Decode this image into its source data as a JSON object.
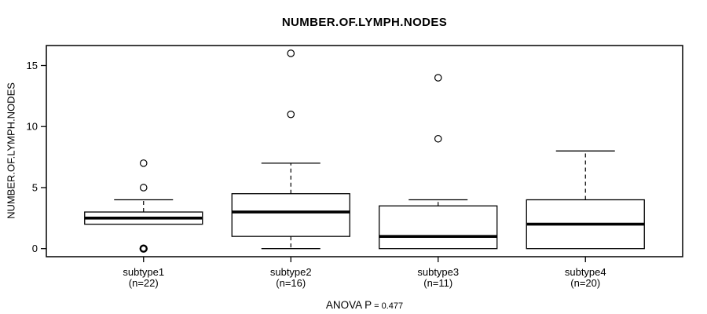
{
  "chart_data": {
    "type": "boxplot",
    "title": "NUMBER.OF.LYMPH.NODES",
    "ylabel": "NUMBER.OF.LYMPH.NODES",
    "footer": {
      "label": "ANOVA P",
      "value": "= 0.477"
    },
    "yticks": [
      0,
      5,
      10,
      15
    ],
    "ylim": [
      0,
      16.5
    ],
    "grid": false,
    "colors": {
      "line": "#000000",
      "background": "#ffffff",
      "box_fill": "#ffffff"
    },
    "groups": [
      {
        "label": "subtype1",
        "count_label": "(n=22)",
        "n": 22,
        "whisker_low": 2,
        "q1": 2,
        "median": 2.5,
        "q3": 3,
        "whisker_high": 4,
        "outliers": [
          5,
          7
        ],
        "outliers_emphasized": [
          0
        ]
      },
      {
        "label": "subtype2",
        "count_label": "(n=16)",
        "n": 16,
        "whisker_low": 0,
        "q1": 1,
        "median": 3,
        "q3": 4.5,
        "whisker_high": 7,
        "outliers": [
          11,
          16
        ],
        "outliers_emphasized": []
      },
      {
        "label": "subtype3",
        "count_label": "(n=11)",
        "n": 11,
        "whisker_low": 0,
        "q1": 0,
        "median": 1,
        "q3": 3.5,
        "whisker_high": 4,
        "outliers": [
          9,
          14
        ],
        "outliers_emphasized": []
      },
      {
        "label": "subtype4",
        "count_label": "(n=20)",
        "n": 20,
        "whisker_low": 0,
        "q1": 0,
        "median": 2,
        "q3": 4,
        "whisker_high": 8,
        "outliers": [],
        "outliers_emphasized": []
      }
    ]
  }
}
